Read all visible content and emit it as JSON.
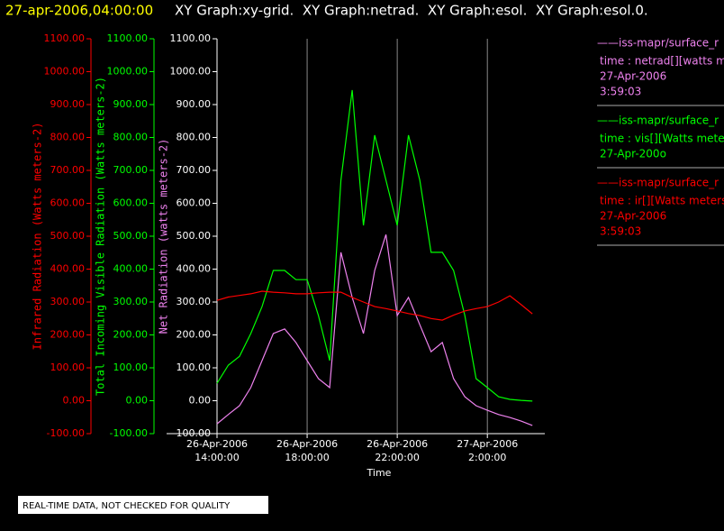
{
  "chart_data": {
    "type": "line",
    "title": "27-apr-2006,04:00:00",
    "subtitle": "XY Graph:xy-grid.  XY Graph:netrad.  XY Graph:esol.  XY Graph:esol.0.",
    "xlabel": "Time",
    "note": "REAL-TIME DATA, NOT CHECKED FOR QUALITY",
    "grid": "x",
    "x": [
      "2006-04-26T14:00",
      "2006-04-26T14:30",
      "2006-04-26T15:00",
      "2006-04-26T15:30",
      "2006-04-26T16:00",
      "2006-04-26T16:30",
      "2006-04-26T17:00",
      "2006-04-26T17:30",
      "2006-04-26T18:00",
      "2006-04-26T18:30",
      "2006-04-26T19:00",
      "2006-04-26T19:30",
      "2006-04-26T20:00",
      "2006-04-26T20:30",
      "2006-04-26T21:00",
      "2006-04-26T21:30",
      "2006-04-26T22:00",
      "2006-04-26T22:30",
      "2006-04-26T23:00",
      "2006-04-26T23:30",
      "2006-04-27T00:00",
      "2006-04-27T00:30",
      "2006-04-27T01:00",
      "2006-04-27T01:30",
      "2006-04-27T02:00",
      "2006-04-27T02:30",
      "2006-04-27T03:00",
      "2006-04-27T03:30",
      "2006-04-27T04:00"
    ],
    "xlim": [
      "2006-04-26T14:00",
      "2006-04-27T04:33"
    ],
    "xticks": [
      {
        "value": "2006-04-26T14:00",
        "label": [
          "26-Apr-2006",
          "14:00:00"
        ]
      },
      {
        "value": "2006-04-26T18:00",
        "label": [
          "26-Apr-2006",
          "18:00:00"
        ]
      },
      {
        "value": "2006-04-26T22:00",
        "label": [
          "26-Apr-2006",
          "22:00:00"
        ]
      },
      {
        "value": "2006-04-27T02:00",
        "label": [
          "27-Apr-2006",
          "2:00:00"
        ]
      }
    ],
    "yaxes": [
      {
        "label": "Infrared Radiation (Watts meters-2)",
        "color": "#ff0000",
        "tick_color": "#ff0000",
        "lim": [
          -100,
          1100
        ],
        "ticks": [
          {
            "value": -100,
            "label": "-100.00"
          },
          {
            "value": 0,
            "label": "0.00"
          },
          {
            "value": 100,
            "label": "100.00"
          },
          {
            "value": 200,
            "label": "200.00"
          },
          {
            "value": 300,
            "label": "300.00"
          },
          {
            "value": 400,
            "label": "400.00"
          },
          {
            "value": 500,
            "label": "500.00"
          },
          {
            "value": 600,
            "label": "600.00"
          },
          {
            "value": 700,
            "label": "700.00"
          },
          {
            "value": 800,
            "label": "800.00"
          },
          {
            "value": 900,
            "label": "900.00"
          },
          {
            "value": 1000,
            "label": "1000.00"
          },
          {
            "value": 1100,
            "label": "1100.00"
          }
        ]
      },
      {
        "label": "Total Incoming Visible Radiation (Watts meters-2)",
        "color": "#00ff00",
        "tick_color": "#00ff00",
        "lim": [
          -100,
          1100
        ],
        "ticks": [
          {
            "value": -100,
            "label": "-100.00"
          },
          {
            "value": 0,
            "label": "0.00"
          },
          {
            "value": 100,
            "label": "100.00"
          },
          {
            "value": 200,
            "label": "200.00"
          },
          {
            "value": 300,
            "label": "300.00"
          },
          {
            "value": 400,
            "label": "400.00"
          },
          {
            "value": 500,
            "label": "500.00"
          },
          {
            "value": 600,
            "label": "600.00"
          },
          {
            "value": 700,
            "label": "700.00"
          },
          {
            "value": 800,
            "label": "800.00"
          },
          {
            "value": 900,
            "label": "900.00"
          },
          {
            "value": 1000,
            "label": "1000.00"
          },
          {
            "value": 1100,
            "label": "1100.00"
          }
        ]
      },
      {
        "label": "Net Radiation (watts meters-2)",
        "color": "#ee82ee",
        "tick_color": "#ffffff",
        "lim": [
          -100,
          1100
        ],
        "ticks": [
          {
            "value": -100,
            "label": "-100.00"
          },
          {
            "value": 0,
            "label": "0.00"
          },
          {
            "value": 100,
            "label": "100.00"
          },
          {
            "value": 200,
            "label": "200.00"
          },
          {
            "value": 300,
            "label": "300.00"
          },
          {
            "value": 400,
            "label": "400.00"
          },
          {
            "value": 500,
            "label": "500.00"
          },
          {
            "value": 600,
            "label": "600.00"
          },
          {
            "value": 700,
            "label": "700.00"
          },
          {
            "value": 800,
            "label": "800.00"
          },
          {
            "value": 900,
            "label": "900.00"
          },
          {
            "value": 1000,
            "label": "1000.00"
          },
          {
            "value": 1100,
            "label": "1100.00"
          }
        ]
      }
    ],
    "series": [
      {
        "name": "——iss-mapr/surface_r",
        "legend": [
          "time : netrad[][watts me",
          "27-Apr-2006",
          "3:59:03"
        ],
        "color": "#ee82ee",
        "axis": 2,
        "values": [
          -70,
          -42,
          -15,
          40,
          122,
          204,
          218,
          177,
          122,
          67,
          40,
          451,
          314,
          204,
          396,
          505,
          259,
          314,
          231,
          149,
          177,
          67,
          12,
          -15,
          -29,
          -42,
          -51,
          -62,
          -75
        ]
      },
      {
        "name": "——iss-mapr/surface_r",
        "legend": [
          "time : vis[][Watts meter",
          "27-Apr-200o"
        ],
        "color": "#00ff00",
        "axis": 1,
        "values": [
          53,
          108,
          135,
          204,
          286,
          396,
          396,
          368,
          368,
          259,
          122,
          670,
          944,
          533,
          807,
          670,
          533,
          807,
          670,
          451,
          451,
          396,
          259,
          67,
          40,
          12,
          4,
          1,
          -1
        ]
      },
      {
        "name": "——iss-mapr/surface_r",
        "legend": [
          "time : ir[][Watts meters",
          "27-Apr-2006",
          "3:59:03"
        ],
        "color": "#ff0000",
        "axis": 0,
        "values": [
          305,
          315,
          320,
          325,
          333,
          330,
          328,
          325,
          325,
          328,
          330,
          330,
          314,
          300,
          286,
          280,
          273,
          265,
          259,
          250,
          245,
          260,
          273,
          280,
          286,
          300,
          319,
          292,
          264
        ]
      }
    ]
  }
}
